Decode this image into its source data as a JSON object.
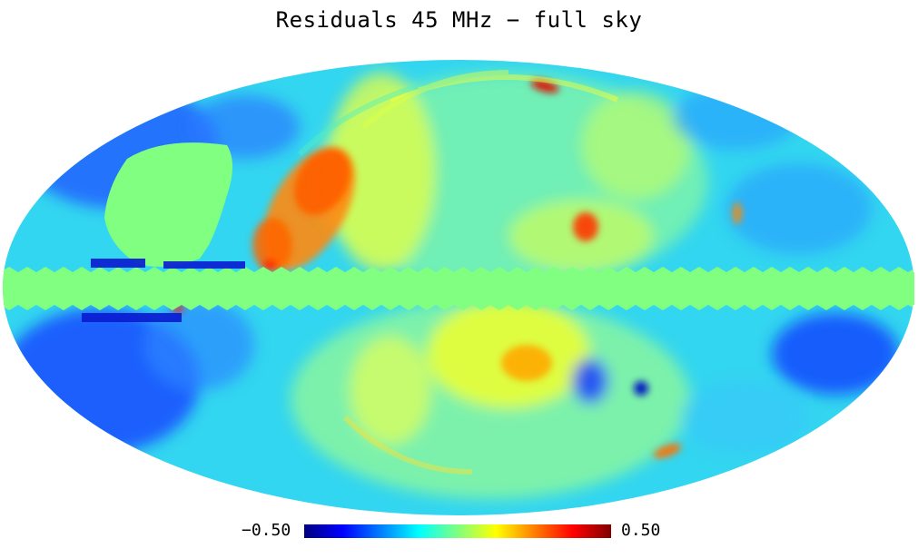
{
  "title": "Residuals 45 MHz − full sky",
  "colorbar": {
    "min_label": "−0.50",
    "max_label": "0.50",
    "colormap": [
      "#00007f",
      "#0000ff",
      "#007fff",
      "#00ffff",
      "#7fff7f",
      "#ffff00",
      "#ff7f00",
      "#ff0000",
      "#7f0000"
    ]
  },
  "map": {
    "projection": "mollweide",
    "masked_color": "#80ff80",
    "background_color": "#33e0f5"
  }
}
